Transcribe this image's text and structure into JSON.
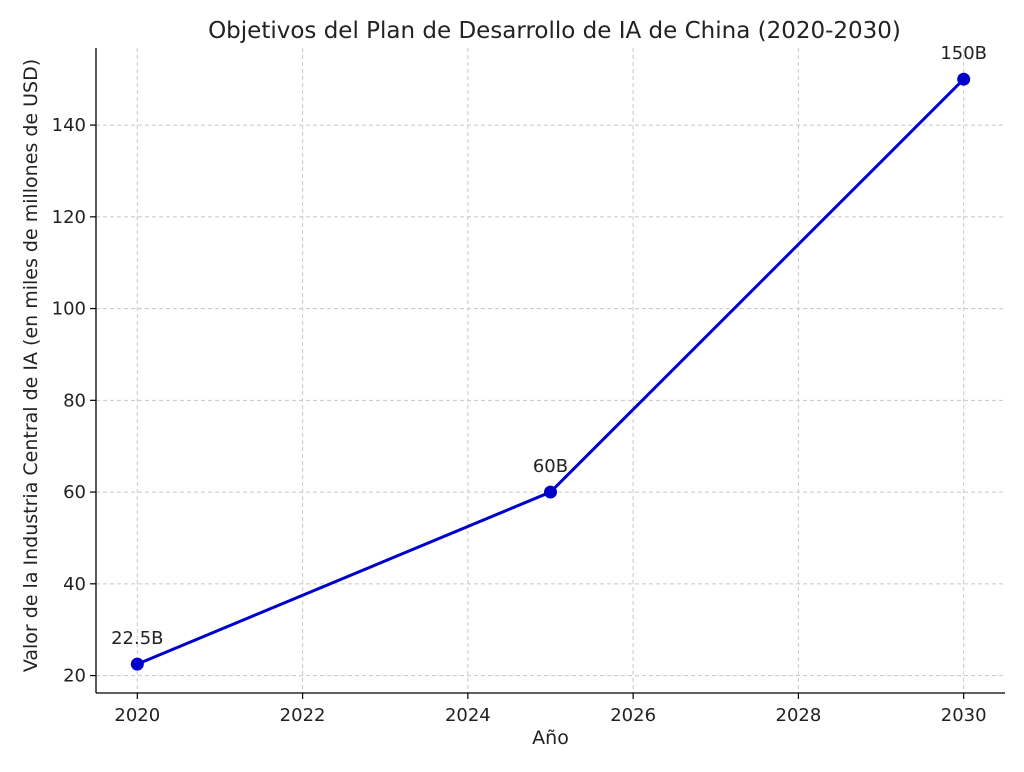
{
  "chart_data": {
    "type": "line",
    "title": "Objetivos del Plan de Desarrollo de IA de China (2020-2030)",
    "xlabel": "Año",
    "ylabel": "Valor de la Industria Central de IA (en miles de millones de USD)",
    "x": [
      2020,
      2025,
      2030
    ],
    "series": [
      {
        "values": [
          22.5,
          60,
          150
        ],
        "point_labels": [
          "22.5B",
          "60B",
          "150B"
        ],
        "color": "#0000cc"
      }
    ],
    "xticks": [
      "2020",
      "2022",
      "2024",
      "2026",
      "2028",
      "2030"
    ],
    "yticks": [
      "20",
      "40",
      "60",
      "80",
      "100",
      "120",
      "140"
    ],
    "xlim": [
      2019.5,
      2030.5
    ],
    "ylim": [
      16.2,
      156.8
    ],
    "grid": true,
    "grid_style": "dashed",
    "marker": "circle"
  }
}
